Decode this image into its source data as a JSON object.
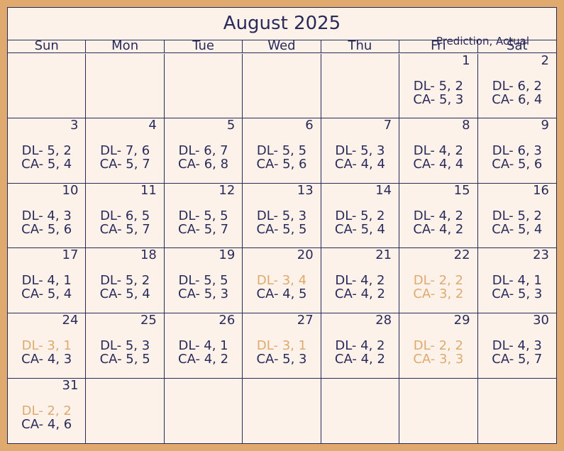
{
  "title": "August 2025",
  "legend": "Prediction, Actual",
  "colors": {
    "frame": "#e0a96d",
    "background": "#fcf2ea",
    "text": "#2a2a5a",
    "highlight": "#e0a96d"
  },
  "weekdays": [
    "Sun",
    "Mon",
    "Tue",
    "Wed",
    "Thu",
    "Fri",
    "Sat"
  ],
  "cells": [
    {
      "day": "",
      "dl": "",
      "ca": ""
    },
    {
      "day": "",
      "dl": "",
      "ca": ""
    },
    {
      "day": "",
      "dl": "",
      "ca": ""
    },
    {
      "day": "",
      "dl": "",
      "ca": ""
    },
    {
      "day": "",
      "dl": "",
      "ca": ""
    },
    {
      "day": "1",
      "dl": "DL- 5, 2",
      "ca": "CA- 5, 3"
    },
    {
      "day": "2",
      "dl": "DL- 6, 2",
      "ca": "CA- 6, 4"
    },
    {
      "day": "3",
      "dl": "DL- 5, 2",
      "ca": "CA- 5, 4"
    },
    {
      "day": "4",
      "dl": "DL- 7, 6",
      "ca": "CA- 5, 7"
    },
    {
      "day": "5",
      "dl": "DL- 6, 7",
      "ca": "CA- 6, 8"
    },
    {
      "day": "6",
      "dl": "DL- 5, 5",
      "ca": "CA- 5, 6"
    },
    {
      "day": "7",
      "dl": "DL- 5, 3",
      "ca": "CA- 4, 4"
    },
    {
      "day": "8",
      "dl": "DL- 4, 2",
      "ca": "CA- 4, 4"
    },
    {
      "day": "9",
      "dl": "DL- 6, 3",
      "ca": "CA- 5, 6"
    },
    {
      "day": "10",
      "dl": "DL- 4, 3",
      "ca": "CA- 5, 6"
    },
    {
      "day": "11",
      "dl": "DL- 6, 5",
      "ca": "CA- 5, 7"
    },
    {
      "day": "12",
      "dl": "DL- 5, 5",
      "ca": "CA- 5, 7"
    },
    {
      "day": "13",
      "dl": "DL- 5, 3",
      "ca": "CA- 5, 5"
    },
    {
      "day": "14",
      "dl": "DL- 5, 2",
      "ca": "CA- 5, 4"
    },
    {
      "day": "15",
      "dl": "DL- 4, 2",
      "ca": "CA- 4, 2"
    },
    {
      "day": "16",
      "dl": "DL- 5, 2",
      "ca": "CA- 5, 4"
    },
    {
      "day": "17",
      "dl": "DL- 4, 1",
      "ca": "CA- 5, 4"
    },
    {
      "day": "18",
      "dl": "DL- 5, 2",
      "ca": "CA- 5, 4"
    },
    {
      "day": "19",
      "dl": "DL- 5, 5",
      "ca": "CA- 5, 3"
    },
    {
      "day": "20",
      "dl": "DL- 3, 4",
      "ca": "CA- 4, 5",
      "dl_hl": true
    },
    {
      "day": "21",
      "dl": "DL- 4, 2",
      "ca": "CA- 4, 2"
    },
    {
      "day": "22",
      "dl": "DL- 2, 2",
      "ca": "CA- 3, 2",
      "dl_hl": true,
      "ca_hl": true
    },
    {
      "day": "23",
      "dl": "DL- 4, 1",
      "ca": "CA- 5, 3"
    },
    {
      "day": "24",
      "dl": "DL- 3, 1",
      "ca": "CA- 4, 3",
      "dl_hl": true
    },
    {
      "day": "25",
      "dl": "DL- 5, 3",
      "ca": "CA- 5, 5"
    },
    {
      "day": "26",
      "dl": "DL- 4, 1",
      "ca": "CA- 4, 2"
    },
    {
      "day": "27",
      "dl": "DL- 3, 1",
      "ca": "CA- 5, 3",
      "dl_hl": true
    },
    {
      "day": "28",
      "dl": "DL- 4, 2",
      "ca": "CA- 4, 2"
    },
    {
      "day": "29",
      "dl": "DL- 2, 2",
      "ca": "CA- 3, 3",
      "dl_hl": true,
      "ca_hl": true
    },
    {
      "day": "30",
      "dl": "DL- 4, 3",
      "ca": "CA- 5, 7"
    },
    {
      "day": "31",
      "dl": "DL- 2, 2",
      "ca": "CA- 4, 6",
      "dl_hl": true
    },
    {
      "day": "",
      "dl": "",
      "ca": ""
    },
    {
      "day": "",
      "dl": "",
      "ca": ""
    },
    {
      "day": "",
      "dl": "",
      "ca": ""
    },
    {
      "day": "",
      "dl": "",
      "ca": ""
    },
    {
      "day": "",
      "dl": "",
      "ca": ""
    },
    {
      "day": "",
      "dl": "",
      "ca": ""
    }
  ]
}
